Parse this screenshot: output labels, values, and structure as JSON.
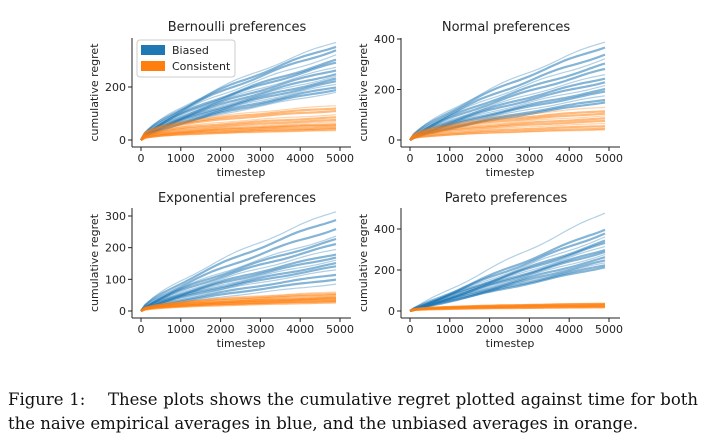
{
  "chart_data": [
    {
      "type": "line",
      "title": "Bernoulli preferences",
      "xlabel": "timestep",
      "ylabel": "cumulative regret",
      "xlim": [
        -200,
        5300
      ],
      "xticks": [
        0,
        1000,
        2000,
        3000,
        4000,
        5000
      ],
      "yticks": [
        0,
        200
      ],
      "legend": {
        "placement": "top-left",
        "entries": [
          "Biased",
          "Consistent"
        ]
      },
      "series": [
        {
          "name": "Biased",
          "color": "#1f77b4",
          "shape_exponent": 0.7,
          "final_values": [
            370,
            355,
            340,
            320,
            300,
            290,
            275,
            265,
            250,
            240,
            230,
            220,
            210,
            200,
            190,
            180
          ]
        },
        {
          "name": "Consistent",
          "color": "#ff7f0e",
          "shape_exponent": 0.4,
          "final_values": [
            130,
            120,
            110,
            95,
            85,
            75,
            68,
            60,
            55,
            50,
            45,
            40,
            35
          ]
        }
      ]
    },
    {
      "type": "line",
      "title": "Normal preferences",
      "xlabel": "timestep",
      "ylabel": "cumulative regret",
      "xlim": [
        -200,
        5300
      ],
      "xticks": [
        0,
        1000,
        2000,
        3000,
        4000,
        5000
      ],
      "yticks": [
        0,
        200,
        400
      ],
      "series": [
        {
          "name": "Biased",
          "color": "#1f77b4",
          "shape_exponent": 0.75,
          "final_values": [
            390,
            370,
            340,
            320,
            300,
            280,
            260,
            245,
            230,
            215,
            200,
            190,
            175,
            160,
            150
          ]
        },
        {
          "name": "Consistent",
          "color": "#ff7f0e",
          "shape_exponent": 0.45,
          "final_values": [
            130,
            115,
            105,
            95,
            85,
            75,
            65,
            55,
            45,
            40
          ]
        }
      ]
    },
    {
      "type": "line",
      "title": "Exponential preferences",
      "xlabel": "timestep",
      "ylabel": "cumulative regret",
      "xlim": [
        -200,
        5300
      ],
      "xticks": [
        0,
        1000,
        2000,
        3000,
        4000,
        5000
      ],
      "yticks": [
        0,
        100,
        200,
        300
      ],
      "series": [
        {
          "name": "Biased",
          "color": "#1f77b4",
          "shape_exponent": 0.75,
          "final_values": [
            315,
            290,
            260,
            235,
            225,
            210,
            195,
            180,
            170,
            160,
            150,
            140,
            130,
            115,
            100,
            85
          ]
        },
        {
          "name": "Consistent",
          "color": "#ff7f0e",
          "shape_exponent": 0.45,
          "final_values": [
            60,
            55,
            50,
            45,
            42,
            40,
            38,
            35,
            32,
            30,
            27
          ]
        }
      ]
    },
    {
      "type": "line",
      "title": "Pareto preferences",
      "xlabel": "timestep",
      "ylabel": "cumulative regret",
      "xlim": [
        -200,
        5300
      ],
      "xticks": [
        0,
        1000,
        2000,
        3000,
        4000,
        5000
      ],
      "yticks": [
        0,
        200,
        400
      ],
      "series": [
        {
          "name": "Biased",
          "color": "#1f77b4",
          "shape_exponent": 0.95,
          "final_values": [
            480,
            400,
            380,
            360,
            340,
            330,
            315,
            300,
            290,
            275,
            260,
            245,
            235,
            225,
            215
          ]
        },
        {
          "name": "Consistent",
          "color": "#ff7f0e",
          "shape_exponent": 0.35,
          "final_values": [
            38,
            35,
            32,
            30,
            28,
            25,
            22,
            20,
            18
          ]
        }
      ]
    }
  ],
  "caption": {
    "label": "Figure 1:",
    "text": "These plots shows the cumulative regret plotted against time for both the naive empirical averages in blue, and the unbiased averages in orange."
  }
}
